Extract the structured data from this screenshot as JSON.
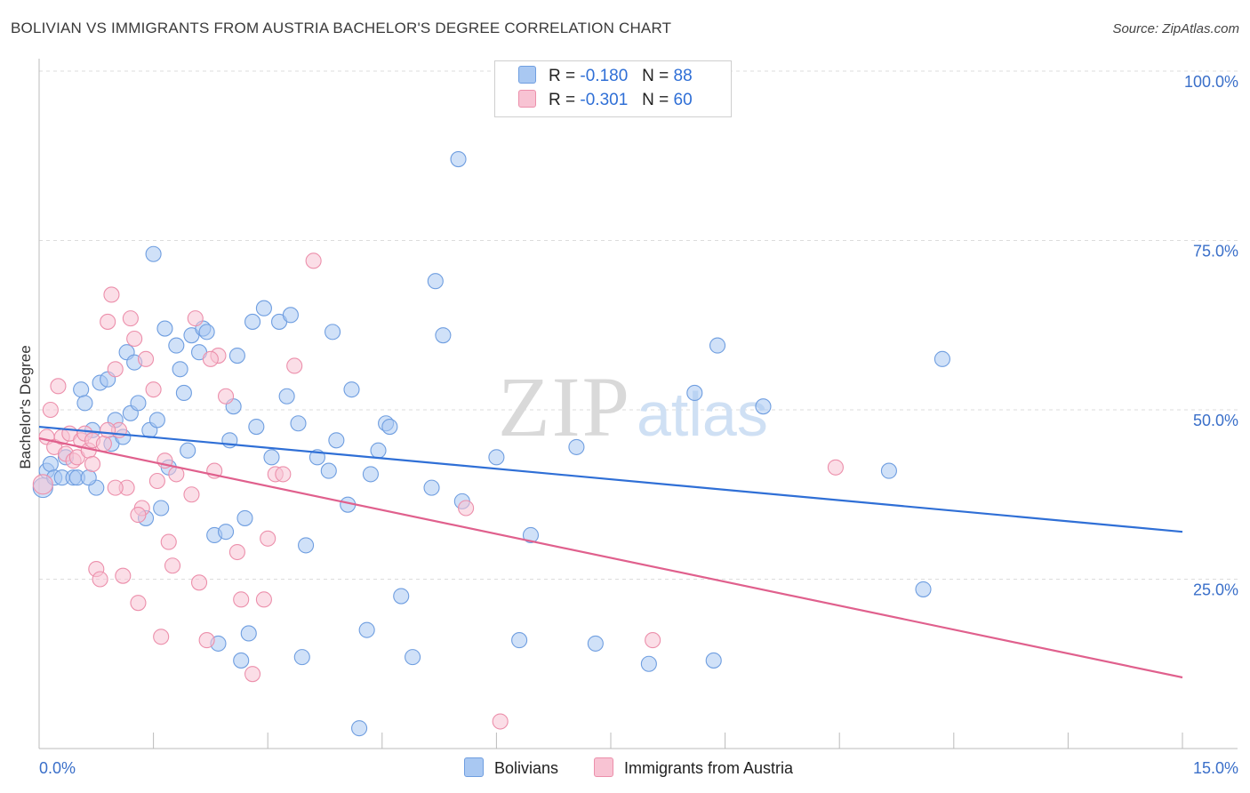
{
  "title": "BOLIVIAN VS IMMIGRANTS FROM AUSTRIA BACHELOR'S DEGREE CORRELATION CHART",
  "source": "Source: ZipAtlas.com",
  "watermark": {
    "zip": "ZIP",
    "atlas": "atlas"
  },
  "legend": {
    "rows": [
      {
        "r_label": "R =",
        "r_value": "-0.180",
        "n_label": "N =",
        "n_value": "88",
        "color": "#a9c8f2",
        "border": "#6f9ee0"
      },
      {
        "r_label": "R =",
        "r_value": "-0.301",
        "n_label": "N =",
        "n_value": "60",
        "color": "#f8c3d3",
        "border": "#ec8fab"
      }
    ]
  },
  "bottom_legend": [
    "Bolivians",
    "Immigrants from Austria"
  ],
  "chart_data": {
    "type": "scatter",
    "title": "BOLIVIAN VS IMMIGRANTS FROM AUSTRIA BACHELOR'S DEGREE CORRELATION CHART",
    "xlabel": "",
    "ylabel": "Bachelor's Degree",
    "xlim": [
      0,
      15
    ],
    "ylim": [
      0,
      100
    ],
    "x_tick_labels": [
      "0.0%",
      "15.0%"
    ],
    "y_ticks": [
      25,
      50,
      75,
      100
    ],
    "y_tick_labels": [
      "25.0%",
      "50.0%",
      "75.0%",
      "100.0%"
    ],
    "grid": true,
    "series": [
      {
        "name": "Bolivians",
        "color": "#6f9ee0",
        "fill": "#a9c8f2",
        "trend": {
          "x": [
            0,
            15
          ],
          "y": [
            47.5,
            32.0
          ],
          "color": "#2f6fd6"
        },
        "points": [
          [
            0.05,
            38.5
          ],
          [
            0.1,
            41
          ],
          [
            0.15,
            42
          ],
          [
            0.2,
            40
          ],
          [
            0.3,
            40
          ],
          [
            0.35,
            43
          ],
          [
            0.45,
            40
          ],
          [
            0.5,
            40
          ],
          [
            0.55,
            53
          ],
          [
            0.6,
            51
          ],
          [
            0.7,
            47
          ],
          [
            0.75,
            38.5
          ],
          [
            0.8,
            54
          ],
          [
            0.9,
            54.5
          ],
          [
            0.95,
            45
          ],
          [
            1.0,
            48.5
          ],
          [
            1.1,
            46
          ],
          [
            1.15,
            58.5
          ],
          [
            1.2,
            49.5
          ],
          [
            1.25,
            57
          ],
          [
            1.3,
            51
          ],
          [
            1.4,
            34
          ],
          [
            1.45,
            47
          ],
          [
            1.5,
            73
          ],
          [
            1.55,
            48.5
          ],
          [
            1.6,
            35.5
          ],
          [
            1.65,
            62
          ],
          [
            1.7,
            41.5
          ],
          [
            1.8,
            59.5
          ],
          [
            1.85,
            56
          ],
          [
            1.9,
            52.5
          ],
          [
            1.95,
            44
          ],
          [
            2.0,
            61
          ],
          [
            2.1,
            58.5
          ],
          [
            2.15,
            62
          ],
          [
            2.2,
            61.5
          ],
          [
            2.3,
            31.5
          ],
          [
            2.35,
            15.5
          ],
          [
            2.45,
            32
          ],
          [
            2.5,
            45.5
          ],
          [
            2.55,
            50.5
          ],
          [
            2.6,
            58
          ],
          [
            2.65,
            13
          ],
          [
            2.7,
            34
          ],
          [
            2.75,
            17
          ],
          [
            2.8,
            63
          ],
          [
            2.85,
            47.5
          ],
          [
            2.95,
            65
          ],
          [
            3.05,
            43
          ],
          [
            3.15,
            63
          ],
          [
            3.25,
            52
          ],
          [
            3.3,
            64
          ],
          [
            3.4,
            48
          ],
          [
            3.45,
            13.5
          ],
          [
            3.5,
            30
          ],
          [
            3.65,
            43
          ],
          [
            3.8,
            41
          ],
          [
            3.85,
            61.5
          ],
          [
            3.9,
            45.5
          ],
          [
            4.05,
            36
          ],
          [
            4.1,
            53
          ],
          [
            4.2,
            3
          ],
          [
            4.3,
            17.5
          ],
          [
            4.35,
            40.5
          ],
          [
            4.45,
            44
          ],
          [
            4.55,
            48
          ],
          [
            4.6,
            47.5
          ],
          [
            4.75,
            22.5
          ],
          [
            4.9,
            13.5
          ],
          [
            5.15,
            38.5
          ],
          [
            5.2,
            69
          ],
          [
            5.3,
            61
          ],
          [
            5.5,
            87
          ],
          [
            5.55,
            36.5
          ],
          [
            6.0,
            43
          ],
          [
            6.3,
            16
          ],
          [
            6.45,
            31.5
          ],
          [
            7.05,
            44.5
          ],
          [
            7.3,
            15.5
          ],
          [
            8.0,
            12.5
          ],
          [
            8.6,
            52.5
          ],
          [
            8.85,
            13
          ],
          [
            8.9,
            59.5
          ],
          [
            9.5,
            50.5
          ],
          [
            11.15,
            41
          ],
          [
            11.6,
            23.5
          ],
          [
            11.85,
            57.5
          ],
          [
            0.65,
            40
          ]
        ]
      },
      {
        "name": "Immigrants from Austria",
        "color": "#ec8fab",
        "fill": "#f8c3d3",
        "trend": {
          "x": [
            0,
            15
          ],
          "y": [
            45.8,
            10.5
          ],
          "color": "#e0608d"
        },
        "points": [
          [
            0.05,
            39
          ],
          [
            0.1,
            46
          ],
          [
            0.15,
            50
          ],
          [
            0.2,
            44.5
          ],
          [
            0.25,
            53.5
          ],
          [
            0.3,
            46
          ],
          [
            0.35,
            43.5
          ],
          [
            0.4,
            46.5
          ],
          [
            0.45,
            42.5
          ],
          [
            0.5,
            43
          ],
          [
            0.55,
            45.5
          ],
          [
            0.6,
            46.5
          ],
          [
            0.65,
            44
          ],
          [
            0.7,
            45.5
          ],
          [
            0.75,
            26.5
          ],
          [
            0.8,
            25
          ],
          [
            0.85,
            45
          ],
          [
            0.9,
            63
          ],
          [
            0.95,
            67
          ],
          [
            1.0,
            56
          ],
          [
            1.05,
            47
          ],
          [
            1.1,
            25.5
          ],
          [
            1.15,
            38.5
          ],
          [
            1.2,
            63.5
          ],
          [
            1.25,
            60.5
          ],
          [
            1.3,
            21.5
          ],
          [
            1.35,
            35.5
          ],
          [
            1.4,
            57.5
          ],
          [
            1.5,
            53
          ],
          [
            1.6,
            16.5
          ],
          [
            1.65,
            42.5
          ],
          [
            1.7,
            30.5
          ],
          [
            1.75,
            27
          ],
          [
            1.8,
            40.5
          ],
          [
            2.0,
            37.5
          ],
          [
            2.05,
            63.5
          ],
          [
            2.1,
            24.5
          ],
          [
            2.2,
            16
          ],
          [
            2.3,
            41
          ],
          [
            2.35,
            58
          ],
          [
            2.45,
            52
          ],
          [
            2.6,
            29
          ],
          [
            2.65,
            22
          ],
          [
            2.8,
            11
          ],
          [
            2.95,
            22
          ],
          [
            3.0,
            31
          ],
          [
            3.1,
            40.5
          ],
          [
            3.2,
            40.5
          ],
          [
            3.35,
            56.5
          ],
          [
            3.6,
            72
          ],
          [
            5.6,
            35.5
          ],
          [
            6.05,
            4
          ],
          [
            8.05,
            16
          ],
          [
            10.45,
            41.5
          ],
          [
            1.3,
            34.5
          ],
          [
            0.7,
            42
          ],
          [
            1.0,
            38.5
          ],
          [
            1.55,
            39.5
          ],
          [
            2.25,
            57.5
          ],
          [
            0.9,
            47
          ]
        ]
      }
    ]
  }
}
